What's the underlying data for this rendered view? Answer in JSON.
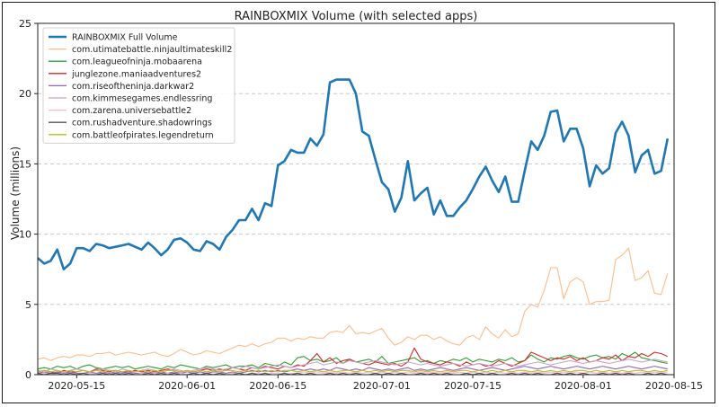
{
  "chart_data": {
    "type": "line",
    "title": "RAINBOXMIX Volume (with selected apps)",
    "ylabel": "Volume (millions)",
    "xlabel": "",
    "ylim": [
      0,
      25
    ],
    "xlim": [
      "2020-05-09",
      "2020-08-15"
    ],
    "yticks": [
      "0",
      "5",
      "10",
      "15",
      "20",
      "25"
    ],
    "xticks": [
      {
        "date": "2020-05-15",
        "label": "2020-05-15"
      },
      {
        "date": "2020-06-01",
        "label": "2020-06-01"
      },
      {
        "date": "2020-06-15",
        "label": "2020-06-15"
      },
      {
        "date": "2020-07-01",
        "label": "2020-07-01"
      },
      {
        "date": "2020-07-15",
        "label": "2020-07-15"
      },
      {
        "date": "2020-08-01",
        "label": "2020-08-01"
      },
      {
        "date": "2020-08-15",
        "label": "2020-08-15"
      }
    ],
    "grid": "horizontal-dashed",
    "legend_position": "top-left",
    "x_start": "2020-05-09",
    "x_step_days": 1,
    "series": [
      {
        "name": "RAINBOXMIX Full Volume",
        "color": "#1f77b4",
        "width": "thick",
        "values": [
          8.3,
          7.9,
          8.1,
          8.9,
          7.5,
          7.9,
          9.0,
          9.0,
          8.8,
          9.3,
          9.2,
          9.0,
          9.1,
          9.2,
          9.3,
          9.1,
          8.9,
          9.4,
          9.0,
          8.5,
          8.9,
          9.6,
          9.7,
          9.4,
          8.9,
          8.8,
          9.5,
          9.3,
          8.9,
          9.8,
          10.3,
          11.0,
          11.0,
          11.8,
          11.0,
          12.2,
          12.0,
          14.9,
          15.2,
          16.0,
          15.8,
          15.8,
          16.8,
          16.3,
          17.1,
          20.8,
          21.0,
          21.0,
          21.0,
          20.0,
          17.3,
          17.0,
          15.3,
          13.7,
          13.2,
          11.6,
          12.6,
          15.2,
          12.4,
          12.9,
          13.3,
          11.4,
          12.4,
          11.3,
          11.3,
          11.9,
          12.4,
          13.2,
          14.1,
          14.8,
          13.8,
          13.0,
          14.1,
          12.3,
          12.3,
          14.5,
          16.6,
          16.0,
          17.0,
          18.7,
          18.8,
          16.6,
          17.5,
          17.5,
          16.1,
          13.4,
          14.9,
          14.3,
          14.7,
          17.2,
          18.0,
          17.0,
          14.4,
          15.6,
          16.0,
          14.3,
          14.5,
          16.8
        ]
      },
      {
        "name": "com.utimatebattle.ninjaultimateskill2",
        "color": "#ffbb88",
        "values": [
          1.1,
          1.2,
          1.0,
          1.2,
          1.3,
          1.2,
          1.4,
          1.4,
          1.3,
          1.5,
          1.5,
          1.6,
          1.4,
          1.5,
          1.6,
          1.5,
          1.4,
          1.5,
          1.6,
          1.4,
          1.3,
          1.5,
          1.8,
          1.6,
          1.4,
          1.5,
          1.7,
          1.6,
          1.5,
          1.7,
          1.9,
          2.1,
          2.0,
          2.2,
          2.0,
          2.2,
          2.3,
          2.6,
          2.6,
          2.4,
          2.6,
          2.5,
          2.7,
          2.6,
          2.6,
          3.0,
          3.1,
          3.0,
          3.5,
          2.9,
          3.0,
          2.9,
          3.1,
          3.3,
          2.6,
          2.1,
          2.3,
          2.7,
          2.5,
          2.8,
          2.8,
          2.5,
          2.7,
          2.4,
          2.2,
          2.1,
          2.6,
          2.8,
          2.5,
          3.4,
          2.9,
          2.6,
          3.2,
          2.7,
          2.9,
          4.5,
          5.0,
          4.8,
          6.0,
          7.6,
          7.6,
          5.4,
          6.6,
          6.9,
          6.6,
          5.0,
          5.2,
          5.2,
          5.3,
          8.2,
          8.5,
          9.0,
          6.7,
          6.9,
          7.4,
          5.8,
          5.7,
          7.2
        ]
      },
      {
        "name": "com.leagueofninja.mobaarena",
        "color": "#2ca02c",
        "values": [
          0.4,
          0.5,
          0.4,
          0.6,
          0.5,
          0.6,
          0.4,
          0.6,
          0.7,
          0.5,
          0.4,
          0.5,
          0.6,
          0.5,
          0.6,
          0.4,
          0.5,
          0.6,
          0.5,
          0.4,
          0.6,
          0.5,
          0.7,
          0.6,
          0.5,
          0.4,
          0.6,
          0.5,
          0.6,
          0.7,
          0.5,
          0.6,
          0.6,
          0.7,
          0.5,
          0.8,
          0.7,
          0.6,
          0.9,
          0.7,
          1.2,
          1.3,
          1.0,
          1.1,
          0.9,
          1.0,
          1.2,
          0.8,
          1.1,
          0.9,
          1.0,
          1.1,
          0.9,
          1.3,
          0.8,
          0.9,
          1.0,
          1.1,
          1.2,
          0.9,
          1.0,
          0.8,
          1.0,
          0.9,
          1.1,
          1.0,
          1.2,
          0.9,
          1.1,
          1.0,
          0.9,
          1.1,
          1.0,
          1.2,
          0.9,
          1.0,
          1.4,
          1.1,
          0.9,
          1.2,
          1.1,
          1.3,
          1.4,
          1.2,
          1.1,
          1.3,
          1.4,
          1.2,
          1.3,
          1.1,
          1.5,
          1.3,
          1.6,
          1.2,
          1.1,
          1.0,
          0.9,
          0.8
        ]
      },
      {
        "name": "junglezone.maniaadventures2",
        "color": "#d62728",
        "values": [
          0.2,
          0.3,
          0.2,
          0.1,
          0.3,
          0.2,
          0.2,
          0.3,
          0.2,
          0.4,
          0.3,
          0.2,
          0.3,
          0.2,
          0.2,
          0.3,
          0.2,
          0.3,
          0.2,
          0.3,
          0.4,
          0.3,
          0.2,
          0.3,
          0.2,
          0.3,
          0.4,
          0.3,
          0.4,
          0.3,
          0.5,
          0.4,
          0.3,
          0.5,
          0.4,
          0.6,
          0.5,
          0.4,
          0.6,
          0.5,
          0.7,
          0.6,
          1.0,
          1.5,
          0.9,
          1.2,
          0.8,
          1.0,
          1.1,
          0.9,
          0.8,
          0.7,
          0.9,
          0.8,
          0.7,
          0.8,
          0.6,
          0.9,
          1.9,
          1.1,
          0.9,
          0.8,
          0.7,
          0.9,
          0.8,
          0.6,
          0.9,
          0.7,
          0.8,
          0.6,
          0.7,
          1.0,
          0.8,
          0.6,
          0.8,
          1.0,
          1.6,
          1.4,
          1.2,
          1.0,
          1.2,
          1.1,
          1.3,
          1.0,
          1.2,
          0.9,
          1.0,
          1.2,
          1.1,
          1.4,
          1.0,
          1.3,
          1.2,
          1.5,
          1.3,
          1.6,
          1.5,
          1.3
        ]
      },
      {
        "name": "com.riseoftheninja.darkwar2",
        "color": "#9467bd",
        "values": [
          0.1,
          0.2,
          0.1,
          0.2,
          0.1,
          0.2,
          0.1,
          0.1,
          0.2,
          0.1,
          0.2,
          0.1,
          0.2,
          0.1,
          0.2,
          0.1,
          0.1,
          0.2,
          0.1,
          0.2,
          0.1,
          0.2,
          0.1,
          0.2,
          0.1,
          0.2,
          0.1,
          0.2,
          0.2,
          0.1,
          0.2,
          0.1,
          0.2,
          0.3,
          0.2,
          0.3,
          0.2,
          0.3,
          0.2,
          0.3,
          0.4,
          0.3,
          0.4,
          0.3,
          0.4,
          0.3,
          0.5,
          0.4,
          0.3,
          0.4,
          0.3,
          0.5,
          0.4,
          0.3,
          0.4,
          0.3,
          0.4,
          0.5,
          0.3,
          0.4,
          0.3,
          0.4,
          0.5,
          0.4,
          0.3,
          0.4,
          0.5,
          0.4,
          0.3,
          0.4,
          0.5,
          0.4,
          0.3,
          0.4,
          0.5,
          0.6,
          0.5,
          0.4,
          0.5,
          0.6,
          0.5,
          0.4,
          0.5,
          0.6,
          0.5,
          0.4,
          0.5,
          0.6,
          0.5,
          0.4,
          0.5,
          0.6,
          0.5,
          0.4,
          0.5,
          0.6,
          0.5,
          0.4
        ]
      },
      {
        "name": "com.kimmesegames.endlessring",
        "color": "#c5a3cf",
        "values": [
          0.3,
          0.2,
          0.4,
          0.3,
          0.2,
          0.3,
          0.4,
          0.3,
          0.2,
          0.3,
          0.4,
          0.3,
          0.2,
          0.4,
          0.3,
          0.2,
          0.3,
          0.4,
          0.3,
          0.2,
          0.3,
          0.4,
          0.3,
          0.2,
          0.3,
          0.4,
          0.5,
          0.4,
          0.3,
          0.4,
          0.5,
          0.4,
          0.6,
          0.5,
          0.4,
          0.5,
          0.6,
          0.7,
          0.6,
          0.5,
          0.6,
          0.7,
          0.8,
          0.9,
          0.7,
          0.8,
          0.9,
          0.8,
          1.0,
          0.9,
          0.8,
          0.9,
          1.0,
          0.9,
          0.8,
          0.7,
          0.8,
          0.9,
          0.8,
          0.7,
          0.8,
          0.7,
          0.6,
          0.7,
          0.8,
          0.7,
          0.6,
          0.7,
          0.8,
          0.7,
          0.6,
          0.7,
          0.8,
          0.7,
          0.6,
          0.7,
          0.8,
          0.9,
          0.8,
          0.7,
          0.8,
          0.9,
          1.0,
          0.9,
          0.8,
          0.9,
          1.0,
          0.9,
          0.8,
          0.9,
          1.0,
          1.1,
          1.0,
          0.9,
          1.0,
          1.1,
          1.0,
          0.9
        ]
      },
      {
        "name": "com.zarena.universebattle2",
        "color": "#f7b6d2",
        "values": [
          0.0,
          0.1,
          0.0,
          0.1,
          0.0,
          0.1,
          0.0,
          0.1,
          0.1,
          0.0,
          0.1,
          0.0,
          0.1,
          0.0,
          0.1,
          0.0,
          0.1,
          0.0,
          0.1,
          0.0,
          0.1,
          0.0,
          0.1,
          0.0,
          0.1,
          0.0,
          0.1,
          0.0,
          0.1,
          0.0,
          0.1,
          0.1,
          0.0,
          0.1,
          0.1,
          0.0,
          0.1,
          0.1,
          0.0,
          0.1,
          0.1,
          0.2,
          0.1,
          0.2,
          0.1,
          0.2,
          0.1,
          0.2,
          0.1,
          0.2,
          0.1,
          0.2,
          0.1,
          0.2,
          0.1,
          0.2,
          0.1,
          0.2,
          0.1,
          0.2,
          0.1,
          0.2,
          0.1,
          0.2,
          0.1,
          0.2,
          0.1,
          0.2,
          0.1,
          0.2,
          0.1,
          0.2,
          0.1,
          0.2,
          0.1,
          0.2,
          0.1,
          0.2,
          0.1,
          0.2,
          0.1,
          0.2,
          0.1,
          0.2,
          0.1,
          0.2,
          0.1,
          0.2,
          0.1,
          0.2,
          0.1,
          0.2,
          0.1,
          0.2,
          0.1,
          0.2,
          0.1,
          0.2
        ]
      },
      {
        "name": "com.rushadventure.shadowrings",
        "color": "#555555",
        "values": [
          0.1,
          0.0,
          0.1,
          0.1,
          0.0,
          0.1,
          0.0,
          0.1,
          0.0,
          0.0,
          0.1,
          0.0,
          0.1,
          0.0,
          0.1,
          0.0,
          0.0,
          0.1,
          0.0,
          0.1,
          0.0,
          0.1,
          0.0,
          0.0,
          0.1,
          0.0,
          0.1,
          0.0,
          0.1,
          0.0,
          0.0,
          0.1,
          0.0,
          0.1,
          0.0,
          0.1,
          0.0,
          0.0,
          0.1,
          0.0,
          0.1,
          0.0,
          0.1,
          0.0,
          0.0,
          0.1,
          0.0,
          0.1,
          0.0,
          0.1,
          0.0,
          0.0,
          0.1,
          0.0,
          0.1,
          0.0,
          0.1,
          0.0,
          0.0,
          0.1,
          0.0,
          0.1,
          0.0,
          0.1,
          0.0,
          0.0,
          0.1,
          0.0,
          0.1,
          0.0,
          0.1,
          0.0,
          0.0,
          0.1,
          0.0,
          0.1,
          0.0,
          0.1,
          0.0,
          0.0,
          0.1,
          0.0,
          0.1,
          0.0,
          0.1,
          0.0,
          0.0,
          0.1,
          0.0,
          0.1,
          0.0,
          0.1,
          0.0,
          0.0,
          0.1,
          0.0,
          0.1,
          0.0
        ]
      },
      {
        "name": "com.battleofpirates.legendreturn",
        "color": "#bcbd22",
        "values": [
          0.2,
          0.3,
          0.2,
          0.3,
          0.2,
          0.3,
          0.2,
          0.3,
          0.2,
          0.3,
          0.2,
          0.3,
          0.3,
          0.2,
          0.3,
          0.2,
          0.3,
          0.2,
          0.3,
          0.2,
          0.3,
          0.3,
          0.2,
          0.3,
          0.2,
          0.3,
          0.2,
          0.3,
          0.2,
          0.3,
          0.3,
          0.2,
          0.3,
          0.2,
          0.3,
          0.2,
          0.3,
          0.2,
          0.3,
          0.3,
          0.2,
          0.3,
          0.2,
          0.3,
          0.2,
          0.3,
          0.2,
          0.3,
          0.3,
          0.2,
          0.3,
          0.2,
          0.3,
          0.2,
          0.3,
          0.2,
          0.3,
          0.3,
          0.2,
          0.3,
          0.2,
          0.3,
          0.2,
          0.3,
          0.2,
          0.3,
          0.3,
          0.2,
          0.3,
          0.2,
          0.3,
          0.2,
          0.3,
          0.2,
          0.3,
          0.3,
          0.2,
          0.3,
          0.2,
          0.3,
          0.2,
          0.3,
          0.2,
          0.3,
          0.3,
          0.2,
          0.3,
          0.2,
          0.3,
          0.2,
          0.3,
          0.2,
          0.3,
          0.3,
          0.2,
          0.3,
          0.2,
          0.3
        ]
      }
    ]
  }
}
